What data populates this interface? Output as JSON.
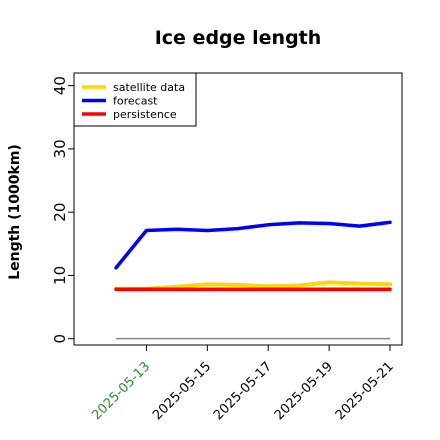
{
  "chart_data": {
    "type": "line",
    "title": "Ice edge length",
    "xlabel": "",
    "ylabel": "Length (1000km)",
    "ylim": [
      -1,
      42
    ],
    "y_ticks": [
      "0",
      "10",
      "20",
      "30",
      "40"
    ],
    "x_ticks": [
      "2025-05-13",
      "2025-05-15",
      "2025-05-17",
      "2025-05-19",
      "2025-05-21"
    ],
    "highlight_tick": "2025-05-13",
    "highlight_color": "#2e8b2e",
    "x": [
      "2025-05-12",
      "2025-05-13",
      "2025-05-14",
      "2025-05-15",
      "2025-05-16",
      "2025-05-17",
      "2025-05-18",
      "2025-05-19",
      "2025-05-20",
      "2025-05-21"
    ],
    "series": [
      {
        "name": "satellite data",
        "color": "#ffd700",
        "values": [
          7.9,
          7.9,
          8.2,
          8.6,
          8.5,
          8.3,
          8.4,
          8.9,
          8.7,
          8.6
        ]
      },
      {
        "name": "forecast",
        "color": "#0000ff",
        "values": [
          11.2,
          17.1,
          17.3,
          17.1,
          17.4,
          18.0,
          18.3,
          18.2,
          17.8,
          18.4
        ]
      },
      {
        "name": "persistence",
        "color": "#ff0000",
        "values": [
          7.8,
          7.8,
          7.8,
          7.8,
          7.8,
          7.8,
          7.8,
          7.8,
          7.8,
          7.8
        ]
      }
    ],
    "baseline": {
      "value": 0,
      "color": "#888888"
    },
    "legend": "top-left",
    "grid": false
  }
}
